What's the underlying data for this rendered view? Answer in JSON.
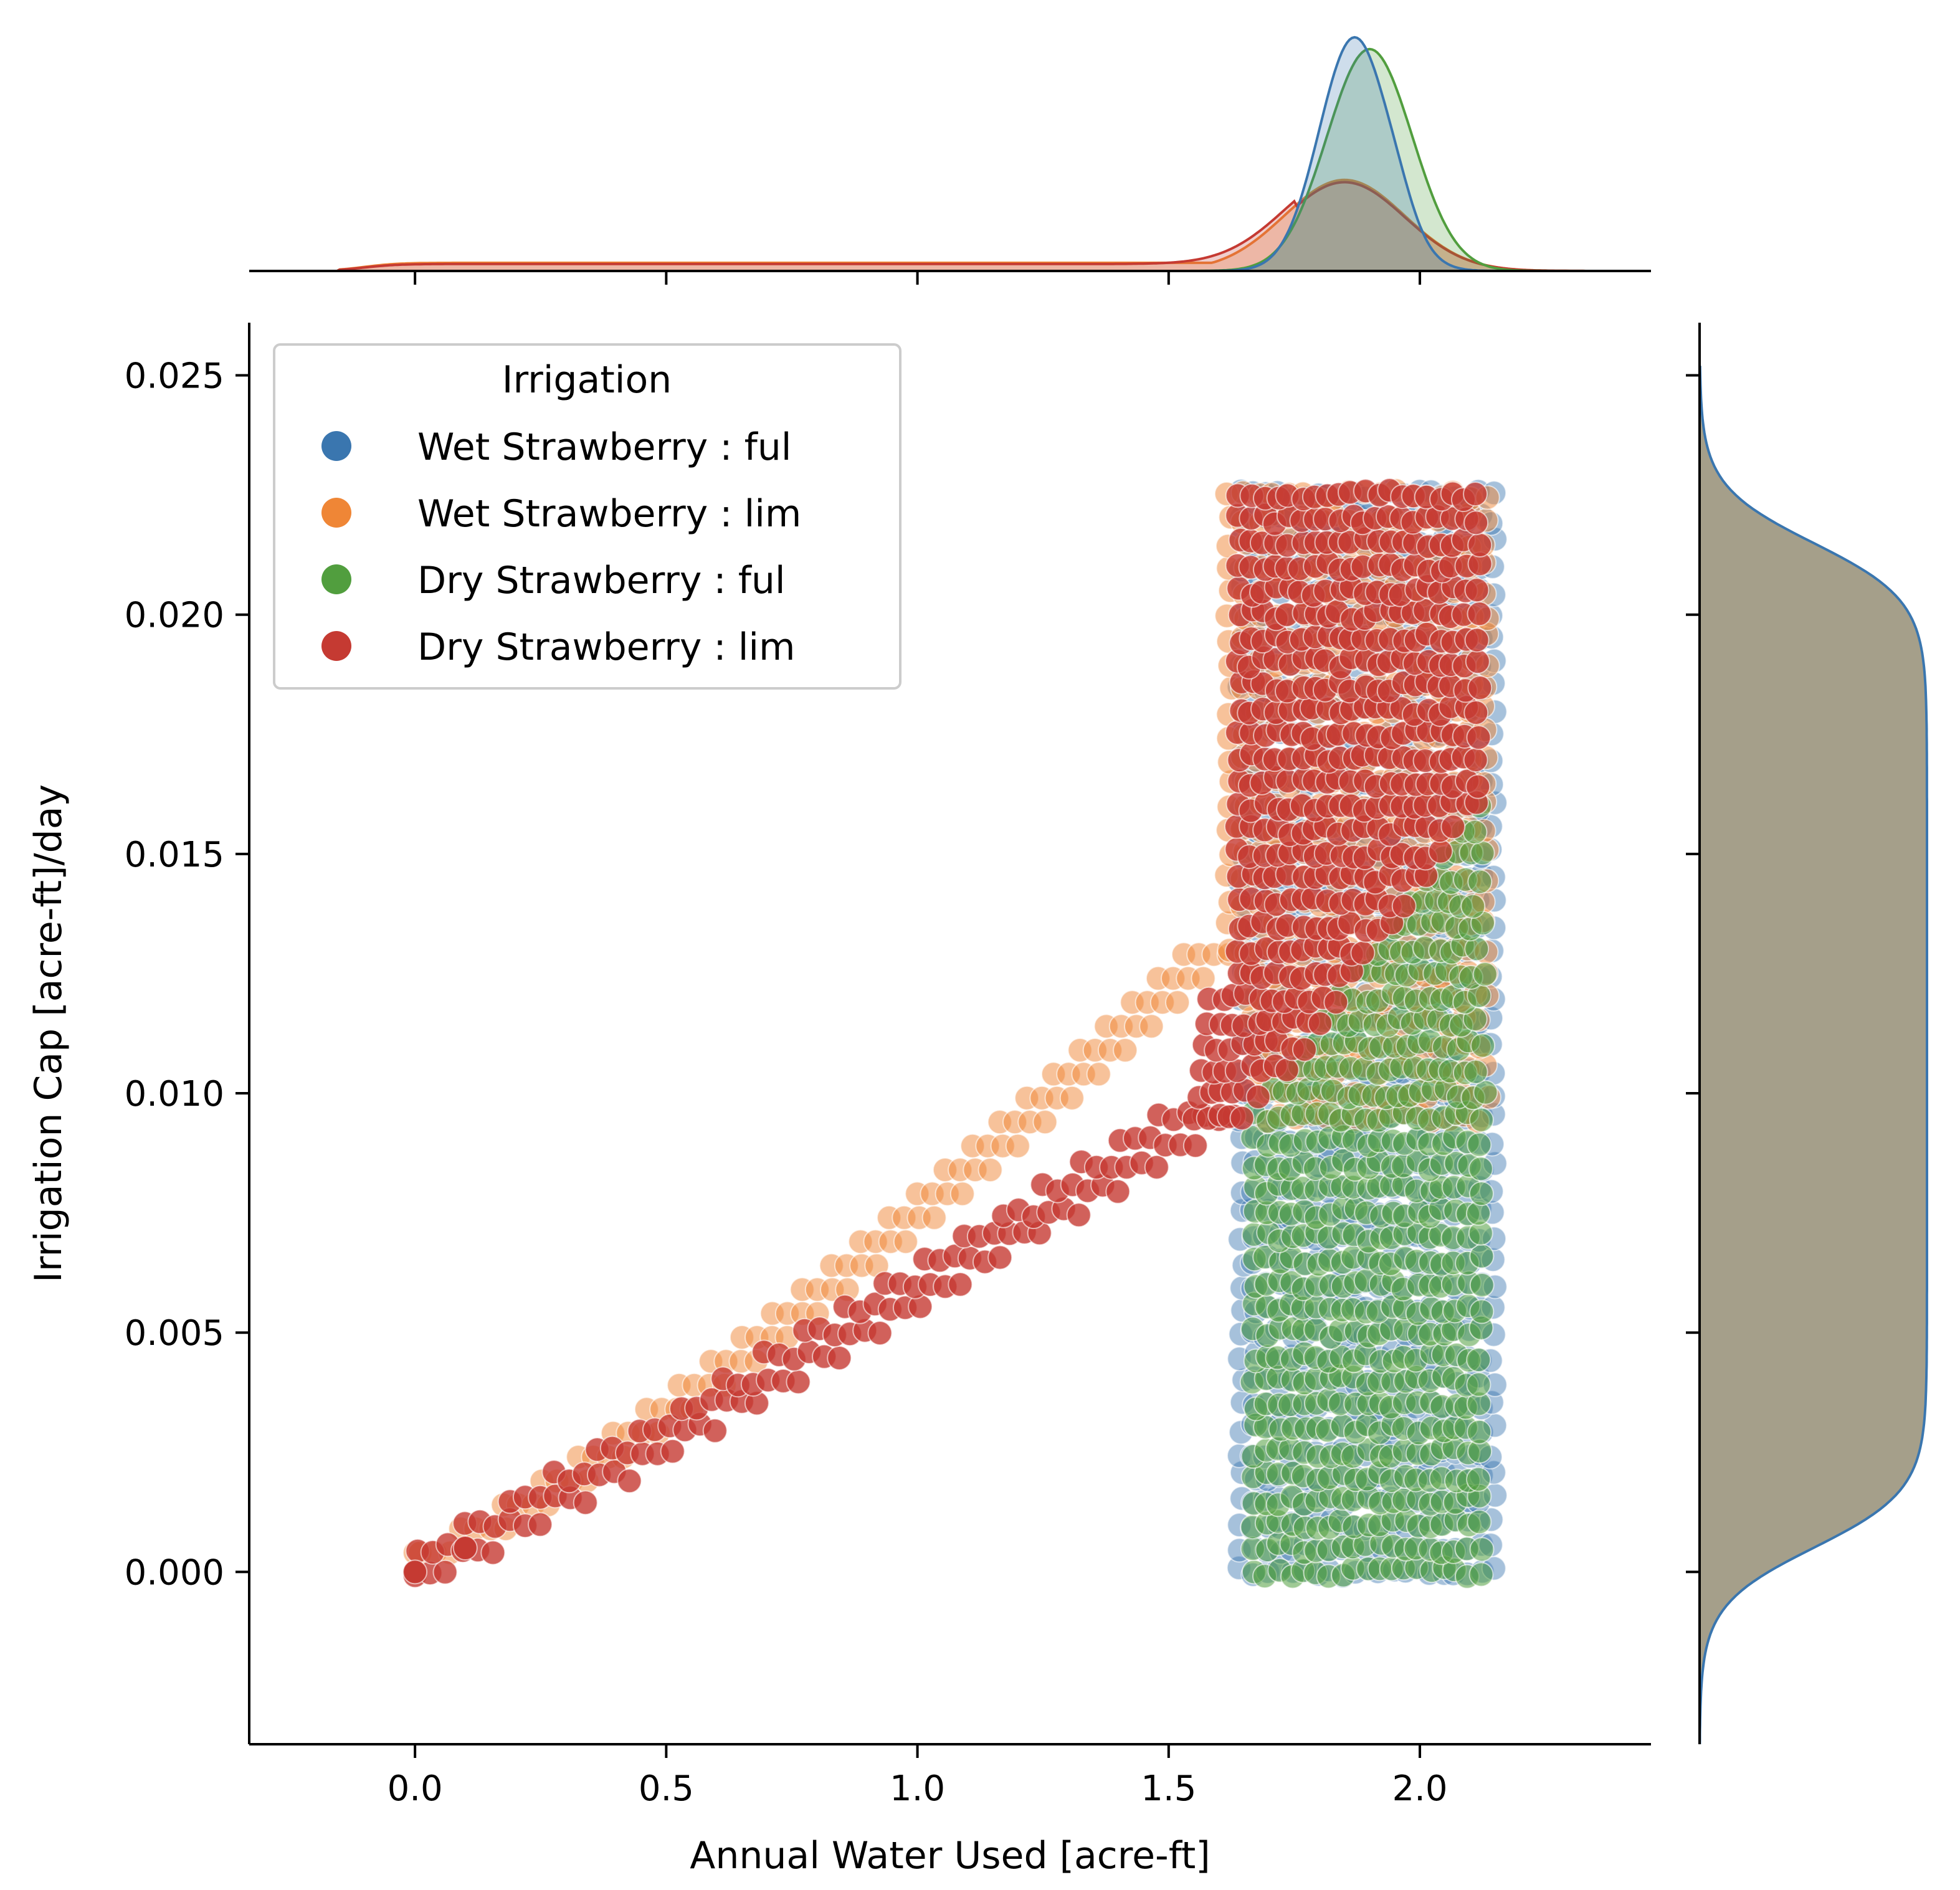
{
  "chart_data": {
    "type": "scatter",
    "subtype": "jointplot",
    "xlabel": "Annual Water Used [acre-ft]",
    "ylabel": "Irrigation Cap [acre-ft]/day",
    "xlim": [
      -0.33,
      2.46
    ],
    "ylim": [
      -0.0036,
      0.0261
    ],
    "xticks": [
      0.0,
      0.5,
      1.0,
      1.5,
      2.0
    ],
    "xtick_labels": [
      "0.0",
      "0.5",
      "1.0",
      "1.5",
      "2.0"
    ],
    "yticks": [
      0.0,
      0.005,
      0.01,
      0.015,
      0.02,
      0.025
    ],
    "ytick_labels": [
      "0.000",
      "0.005",
      "0.010",
      "0.015",
      "0.020",
      "0.025"
    ],
    "legend": {
      "title": "Irrigation",
      "placement": "top-left",
      "entries": [
        {
          "label": "Wet Strawberry : ful",
          "color": "#3a76af"
        },
        {
          "label": "Wet Strawberry : lim",
          "color": "#ef8636"
        },
        {
          "label": "Dry Strawberry : ful",
          "color": "#519e3e"
        },
        {
          "label": "Dry Strawberry : lim",
          "color": "#c53a32"
        }
      ]
    },
    "series": [
      {
        "name": "Wet Strawberry : ful",
        "color": "#3a76af",
        "description": "points spread over x 1.64-2.16 for every y from 0.000 to ~0.023",
        "x_range": [
          1.64,
          2.16
        ],
        "y_range": [
          0.0,
          0.0225
        ]
      },
      {
        "name": "Wet Strawberry : lim",
        "color": "#ef8636",
        "description": "rising curve from (0,0) to ~(1.6,0.0125), then band x 1.62-2.15 for y up to 0.0225",
        "x_range": [
          0.0,
          2.15
        ],
        "y_range": [
          0.0,
          0.0225
        ]
      },
      {
        "name": "Dry Strawberry : ful",
        "color": "#519e3e",
        "description": "band x 1.67-2.13 for y 0.000-0.0095; upper edge shrinks toward x 2.12 by y ~0.016",
        "x_range": [
          1.67,
          2.13
        ],
        "y_range": [
          0.0,
          0.016
        ]
      },
      {
        "name": "Dry Strawberry : lim",
        "color": "#c53a32",
        "description": "rising curve from (0,0) to ~(1.6,0.0095), then band above the green region up to y 0.0225",
        "x_range": [
          0.0,
          2.12
        ],
        "y_range": [
          0.0,
          0.0225
        ]
      }
    ],
    "marginal_x": {
      "type": "kde",
      "series": [
        {
          "name": "Wet Strawberry : ful",
          "peak_x": 1.87,
          "relative_peak": 1.0
        },
        {
          "name": "Wet Strawberry : lim",
          "peak_x": 1.85,
          "relative_peak": 0.39,
          "left_tail_from": -0.2
        },
        {
          "name": "Dry Strawberry : ful",
          "peak_x": 1.9,
          "relative_peak": 0.95
        },
        {
          "name": "Dry Strawberry : lim",
          "peak_x": 1.85,
          "relative_peak": 0.38,
          "left_tail_from": -0.2
        }
      ]
    },
    "marginal_y": {
      "type": "kde",
      "description": "near-uniform plateau from y 0.001 to 0.0205, all groups overlapping",
      "plateau": [
        0.001,
        0.0205
      ],
      "support": [
        -0.0022,
        0.0248
      ]
    }
  }
}
